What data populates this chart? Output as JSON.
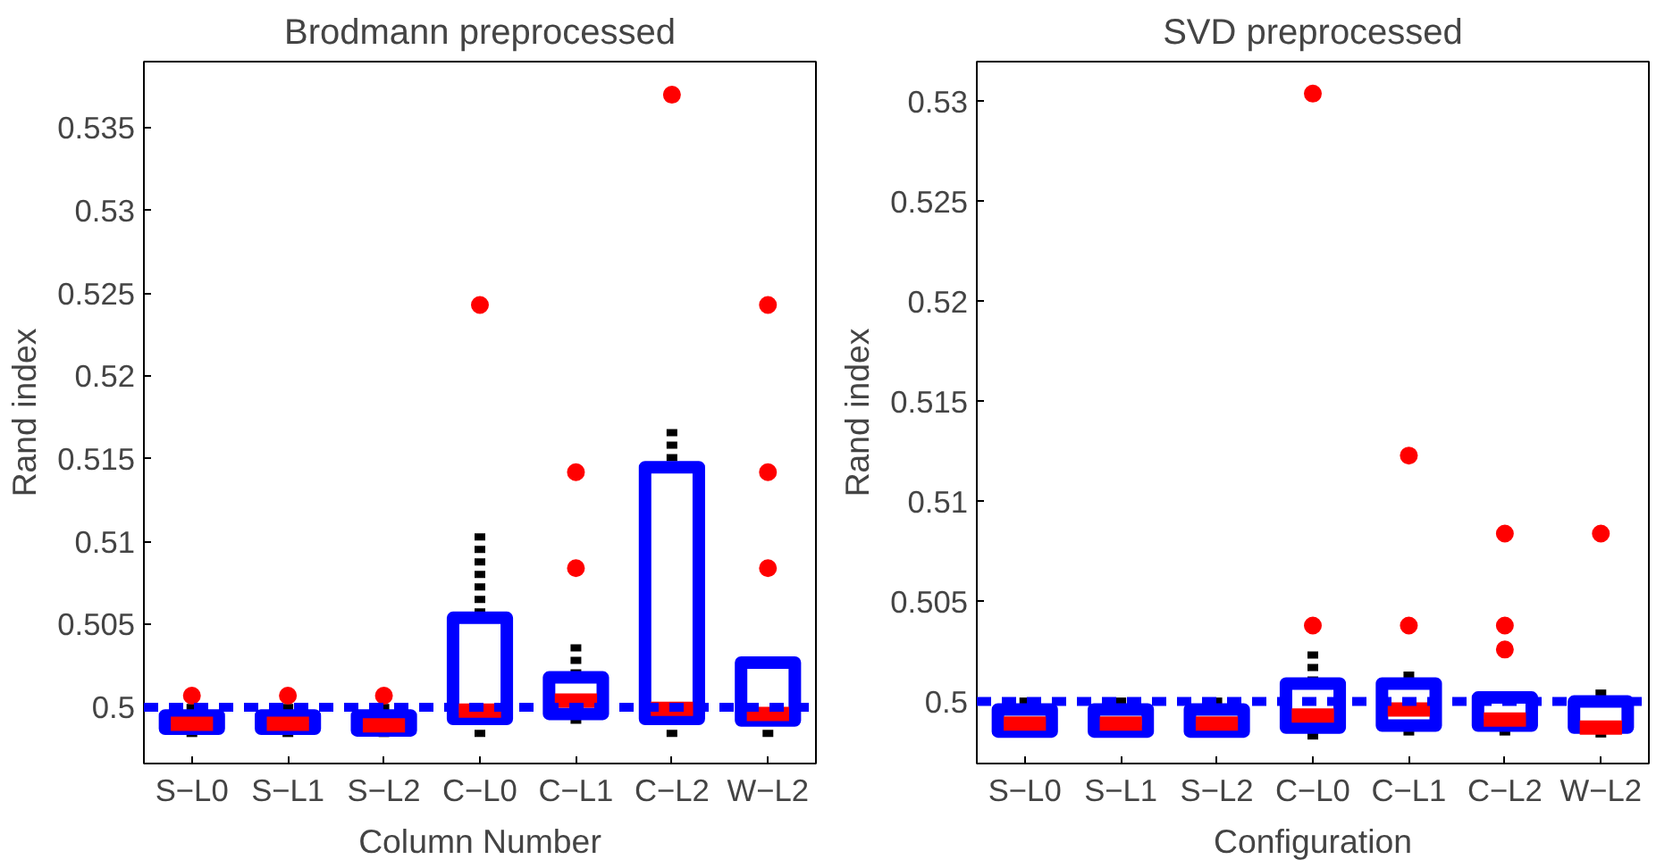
{
  "chart_data": [
    {
      "type": "box",
      "title": "Brodmann preprocessed",
      "xlabel": "Column Number",
      "ylabel": "Rand index",
      "categories": [
        "S−L0",
        "S−L1",
        "S−L2",
        "C−L0",
        "C−L1",
        "C−L2",
        "W−L2"
      ],
      "ylim": [
        0.4966,
        0.539
      ],
      "yticks": [
        0.5,
        0.505,
        0.51,
        0.515,
        0.52,
        0.525,
        0.53,
        0.535
      ],
      "grid": false,
      "series": [
        {
          "color": "#0000ff",
          "boxes": [
            {
              "low": 0.4982,
              "q1": 0.4987,
              "median": 0.499,
              "q3": 0.4995,
              "high": 0.5002,
              "outliers": [
                0.5007
              ]
            },
            {
              "low": 0.4982,
              "q1": 0.4987,
              "median": 0.499,
              "q3": 0.4995,
              "high": 0.5002,
              "outliers": [
                0.5007
              ]
            },
            {
              "low": 0.4982,
              "q1": 0.4986,
              "median": 0.4989,
              "q3": 0.4995,
              "high": 0.5002,
              "outliers": [
                0.5007
              ]
            },
            {
              "low": 0.4982,
              "q1": 0.4993,
              "median": 0.4998,
              "q3": 0.5054,
              "high": 0.5105,
              "outliers": [
                0.5243
              ]
            },
            {
              "low": 0.499,
              "q1": 0.4996,
              "median": 0.5004,
              "q3": 0.5018,
              "high": 0.5038,
              "outliers": [
                0.5084,
                0.5142
              ]
            },
            {
              "low": 0.4982,
              "q1": 0.4993,
              "median": 0.4999,
              "q3": 0.5145,
              "high": 0.5168,
              "outliers": [
                0.537
              ]
            },
            {
              "low": 0.4982,
              "q1": 0.4992,
              "median": 0.4996,
              "q3": 0.5027,
              "high": 0.5027,
              "outliers": [
                0.5084,
                0.5142,
                0.5243
              ]
            }
          ]
        }
      ],
      "ref_lines": [
        {
          "axis": "y",
          "value": 0.5,
          "color": "#0000ff",
          "line_style": "dashed"
        }
      ]
    },
    {
      "type": "box",
      "title": "SVD preprocessed",
      "xlabel": "Configuration",
      "ylabel": "Rand index",
      "categories": [
        "S−L0",
        "S−L1",
        "S−L2",
        "C−L0",
        "C−L1",
        "C−L2",
        "W−L2"
      ],
      "ylim": [
        0.4969,
        0.532
      ],
      "yticks": [
        0.5,
        0.505,
        0.51,
        0.515,
        0.52,
        0.525,
        0.53
      ],
      "grid": false,
      "series": [
        {
          "color": "#0000ff",
          "boxes": [
            {
              "low": 0.4983,
              "q1": 0.4985,
              "median": 0.4989,
              "q3": 0.4996,
              "high": 0.5002
            },
            {
              "low": 0.4983,
              "q1": 0.4985,
              "median": 0.4989,
              "q3": 0.4996,
              "high": 0.5002
            },
            {
              "low": 0.4983,
              "q1": 0.4985,
              "median": 0.4989,
              "q3": 0.4996,
              "high": 0.5002
            },
            {
              "low": 0.4981,
              "q1": 0.4987,
              "median": 0.4993,
              "q3": 0.5009,
              "high": 0.5025,
              "outliers": [
                0.5038,
                0.5304
              ]
            },
            {
              "low": 0.4983,
              "q1": 0.4988,
              "median": 0.4996,
              "q3": 0.5009,
              "high": 0.5015,
              "outliers": [
                0.5038,
                0.5123
              ]
            },
            {
              "low": 0.4983,
              "q1": 0.4988,
              "median": 0.4991,
              "q3": 0.5002,
              "high": 0.5002,
              "outliers": [
                0.5026,
                0.5038,
                0.5084
              ]
            },
            {
              "low": 0.4982,
              "q1": 0.4987,
              "median": 0.4987,
              "q3": 0.5,
              "high": 0.5006,
              "outliers": [
                0.5084
              ]
            }
          ]
        }
      ],
      "ref_lines": [
        {
          "axis": "y",
          "value": 0.5,
          "color": "#0000ff",
          "line_style": "dashed"
        }
      ]
    }
  ]
}
